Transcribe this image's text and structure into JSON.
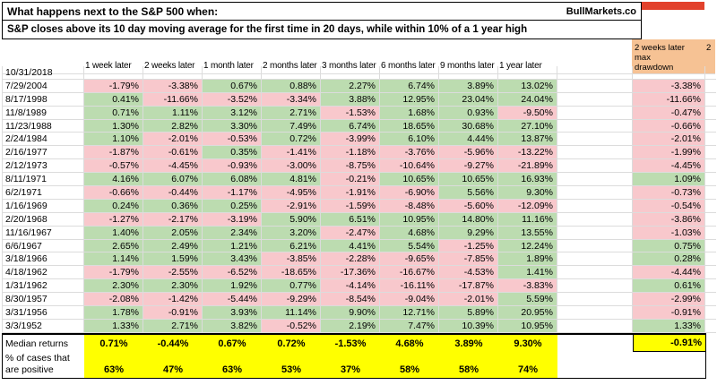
{
  "title": {
    "line1": "What happens next to the S&P 500 when:",
    "line2": "S&P closes above its 10 day moving average for the first time in 20 days, while within 10% of a 1 year high",
    "brand": "BullMarkets.co"
  },
  "right_headers": {
    "drawdown_line1": "2 weeks later max",
    "drawdown_line2": "drawdown",
    "next_fragment": "2"
  },
  "colors": {
    "green": "#bcdcb0",
    "pink": "#f8c8cc",
    "yellow": "#ffff00",
    "orange": "#f6c294",
    "red": "#e2422c",
    "grid": "#dcdcdc"
  },
  "chart_data": {
    "type": "table",
    "title": "What happens next to the S&P 500 when: S&P closes above its 10 day moving average for the first time in 20 days, while within 10% of a 1 year high",
    "columns": [
      "1 week later",
      "2 weeks later",
      "1 month later",
      "2 months later",
      "3 months later",
      "6 months later",
      "9 months later",
      "1 year later"
    ],
    "drawdown_column": "2 weeks later max drawdown",
    "rows": [
      {
        "date": "10/31/2018",
        "values": [
          "",
          "",
          "",
          "",
          "",
          "",
          "",
          ""
        ],
        "drawdown": ""
      },
      {
        "date": "7/29/2004",
        "values": [
          "-1.79%",
          "-3.38%",
          "0.67%",
          "0.88%",
          "2.27%",
          "6.74%",
          "3.89%",
          "13.02%"
        ],
        "drawdown": "-3.38%"
      },
      {
        "date": "8/17/1998",
        "values": [
          "0.41%",
          "-11.66%",
          "-3.52%",
          "-3.34%",
          "3.88%",
          "12.95%",
          "23.04%",
          "24.04%"
        ],
        "drawdown": "-11.66%"
      },
      {
        "date": "11/8/1989",
        "values": [
          "0.71%",
          "1.11%",
          "3.12%",
          "2.71%",
          "-1.53%",
          "1.68%",
          "0.93%",
          "-9.50%"
        ],
        "drawdown": "-0.47%"
      },
      {
        "date": "11/23/1988",
        "values": [
          "1.30%",
          "2.82%",
          "3.30%",
          "7.49%",
          "6.74%",
          "18.65%",
          "30.68%",
          "27.10%"
        ],
        "drawdown": "-0.66%"
      },
      {
        "date": "2/24/1984",
        "values": [
          "1.10%",
          "-2.01%",
          "-0.53%",
          "0.72%",
          "-3.99%",
          "6.10%",
          "4.44%",
          "13.87%"
        ],
        "drawdown": "-2.01%"
      },
      {
        "date": "2/16/1977",
        "values": [
          "-1.87%",
          "-0.61%",
          "0.35%",
          "-1.41%",
          "-1.18%",
          "-3.76%",
          "-5.96%",
          "-13.22%"
        ],
        "drawdown": "-1.99%"
      },
      {
        "date": "2/12/1973",
        "values": [
          "-0.57%",
          "-4.45%",
          "-0.93%",
          "-3.00%",
          "-8.75%",
          "-10.64%",
          "-9.27%",
          "-21.89%"
        ],
        "drawdown": "-4.45%"
      },
      {
        "date": "8/11/1971",
        "values": [
          "4.16%",
          "6.07%",
          "6.08%",
          "4.81%",
          "-0.21%",
          "10.65%",
          "10.65%",
          "16.93%"
        ],
        "drawdown": "1.09%"
      },
      {
        "date": "6/2/1971",
        "values": [
          "-0.66%",
          "-0.44%",
          "-1.17%",
          "-4.95%",
          "-1.91%",
          "-6.90%",
          "5.56%",
          "9.30%"
        ],
        "drawdown": "-0.73%"
      },
      {
        "date": "1/16/1969",
        "values": [
          "0.24%",
          "0.36%",
          "0.25%",
          "-2.91%",
          "-1.59%",
          "-8.48%",
          "-5.60%",
          "-12.09%"
        ],
        "drawdown": "-0.54%"
      },
      {
        "date": "2/20/1968",
        "values": [
          "-1.27%",
          "-2.17%",
          "-3.19%",
          "5.90%",
          "6.51%",
          "10.95%",
          "14.80%",
          "11.16%"
        ],
        "drawdown": "-3.86%"
      },
      {
        "date": "11/16/1967",
        "values": [
          "1.40%",
          "2.05%",
          "2.34%",
          "3.20%",
          "-2.47%",
          "4.68%",
          "9.29%",
          "13.55%"
        ],
        "drawdown": "-1.03%"
      },
      {
        "date": "6/6/1967",
        "values": [
          "2.65%",
          "2.49%",
          "1.21%",
          "6.21%",
          "4.41%",
          "5.54%",
          "-1.25%",
          "12.24%"
        ],
        "drawdown": "0.75%"
      },
      {
        "date": "3/18/1966",
        "values": [
          "1.14%",
          "1.59%",
          "3.43%",
          "-3.85%",
          "-2.28%",
          "-9.65%",
          "-7.85%",
          "1.89%"
        ],
        "drawdown": "0.28%"
      },
      {
        "date": "4/18/1962",
        "values": [
          "-1.79%",
          "-2.55%",
          "-6.52%",
          "-18.65%",
          "-17.36%",
          "-16.67%",
          "-4.53%",
          "1.41%"
        ],
        "drawdown": "-4.44%"
      },
      {
        "date": "1/31/1962",
        "values": [
          "2.30%",
          "2.30%",
          "1.92%",
          "0.77%",
          "-4.14%",
          "-16.11%",
          "-17.87%",
          "-3.83%"
        ],
        "drawdown": "0.61%"
      },
      {
        "date": "8/30/1957",
        "values": [
          "-2.08%",
          "-1.42%",
          "-5.44%",
          "-9.29%",
          "-8.54%",
          "-9.04%",
          "-2.01%",
          "5.59%"
        ],
        "drawdown": "-2.99%"
      },
      {
        "date": "3/31/1956",
        "values": [
          "1.78%",
          "-0.91%",
          "3.93%",
          "11.14%",
          "9.90%",
          "12.71%",
          "5.89%",
          "20.95%"
        ],
        "drawdown": "-0.91%"
      },
      {
        "date": "3/3/1952",
        "values": [
          "1.33%",
          "2.71%",
          "3.82%",
          "-0.52%",
          "2.19%",
          "7.47%",
          "10.39%",
          "10.95%"
        ],
        "drawdown": "1.33%"
      }
    ],
    "summary": {
      "median_label": "Median returns",
      "median": [
        "0.71%",
        "-0.44%",
        "0.67%",
        "0.72%",
        "-1.53%",
        "4.68%",
        "3.89%",
        "9.30%"
      ],
      "median_drawdown": "-0.91%",
      "positive_label": "% of cases that are positive",
      "positive": [
        "63%",
        "47%",
        "63%",
        "53%",
        "37%",
        "58%",
        "58%",
        "74%"
      ]
    }
  }
}
